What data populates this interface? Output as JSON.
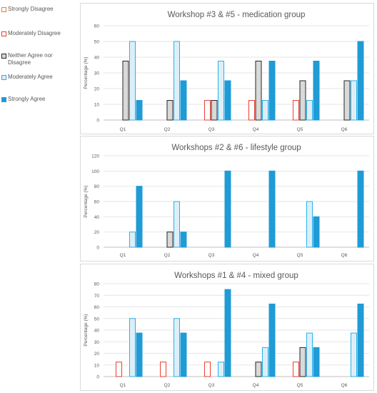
{
  "legend": {
    "items": [
      {
        "label": "Strongly Disagree",
        "fill": "#ffffff",
        "stroke": "#ed7d31"
      },
      {
        "label": "Moderately Disagree",
        "fill": "#ffffff",
        "stroke": "#e83e2f"
      },
      {
        "label": "Neither Agree nor Disagree",
        "fill": "#d9d9d9",
        "stroke": "#262626"
      },
      {
        "label": "Moderately Agree",
        "fill": "#ddeef9",
        "stroke": "#27b3e8"
      },
      {
        "label": "Strongly Agree",
        "fill": "#1f9bd6",
        "stroke": "#1f9bd6"
      }
    ]
  },
  "chart_data": [
    {
      "type": "bar",
      "title": "Workshop #3 & #5 - medication group",
      "ylabel": "Percentage (%)",
      "ylim": [
        0,
        60
      ],
      "yticks": [
        0,
        10,
        20,
        30,
        40,
        50,
        60
      ],
      "categories": [
        "Q1",
        "Q2",
        "Q3",
        "Q4",
        "Q5",
        "Q6"
      ],
      "series": [
        {
          "name": "Strongly Disagree",
          "values": [
            0,
            0,
            0,
            0,
            0,
            0
          ]
        },
        {
          "name": "Moderately Disagree",
          "values": [
            0,
            0,
            12.5,
            12.5,
            12.5,
            0
          ]
        },
        {
          "name": "Neither Agree nor Disagree",
          "values": [
            37.5,
            12.5,
            12.5,
            37.5,
            25,
            25
          ]
        },
        {
          "name": "Moderately Agree",
          "values": [
            50,
            50,
            37.5,
            12.5,
            12.5,
            25
          ]
        },
        {
          "name": "Strongly Agree",
          "values": [
            12.5,
            25,
            25,
            37.5,
            37.5,
            50
          ]
        }
      ]
    },
    {
      "type": "bar",
      "title": "Workshops #2 & #6 - lifestyle group",
      "ylabel": "Percentage (%)",
      "ylim": [
        0,
        120
      ],
      "yticks": [
        0,
        20,
        40,
        60,
        80,
        100,
        120
      ],
      "categories": [
        "Q1",
        "Q2",
        "Q3",
        "Q4",
        "Q5",
        "Q6"
      ],
      "series": [
        {
          "name": "Strongly Disagree",
          "values": [
            0,
            0,
            0,
            0,
            0,
            0
          ]
        },
        {
          "name": "Moderately Disagree",
          "values": [
            0,
            0,
            0,
            0,
            0,
            0
          ]
        },
        {
          "name": "Neither Agree nor Disagree",
          "values": [
            0,
            20,
            0,
            0,
            0,
            0
          ]
        },
        {
          "name": "Moderately Agree",
          "values": [
            20,
            60,
            0,
            0,
            60,
            0
          ]
        },
        {
          "name": "Strongly Agree",
          "values": [
            80,
            20,
            100,
            100,
            40,
            100
          ]
        }
      ]
    },
    {
      "type": "bar",
      "title": "Workshops #1 & #4 - mixed group",
      "ylabel": "Percentage (%)",
      "ylim": [
        0,
        80
      ],
      "yticks": [
        0,
        10,
        20,
        30,
        40,
        50,
        60,
        70,
        80
      ],
      "categories": [
        "Q1",
        "Q2",
        "Q3",
        "Q4",
        "Q5",
        "Q6"
      ],
      "series": [
        {
          "name": "Strongly Disagree",
          "values": [
            0,
            0,
            0,
            0,
            0,
            0
          ]
        },
        {
          "name": "Moderately Disagree",
          "values": [
            12.5,
            12.5,
            12.5,
            0,
            12.5,
            0
          ]
        },
        {
          "name": "Neither Agree nor Disagree",
          "values": [
            0,
            0,
            0,
            12.5,
            25,
            0
          ]
        },
        {
          "name": "Moderately Agree",
          "values": [
            50,
            50,
            12.5,
            25,
            37.5,
            37.5
          ]
        },
        {
          "name": "Strongly Agree",
          "values": [
            37.5,
            37.5,
            75,
            62.5,
            25,
            62.5
          ]
        }
      ]
    }
  ]
}
